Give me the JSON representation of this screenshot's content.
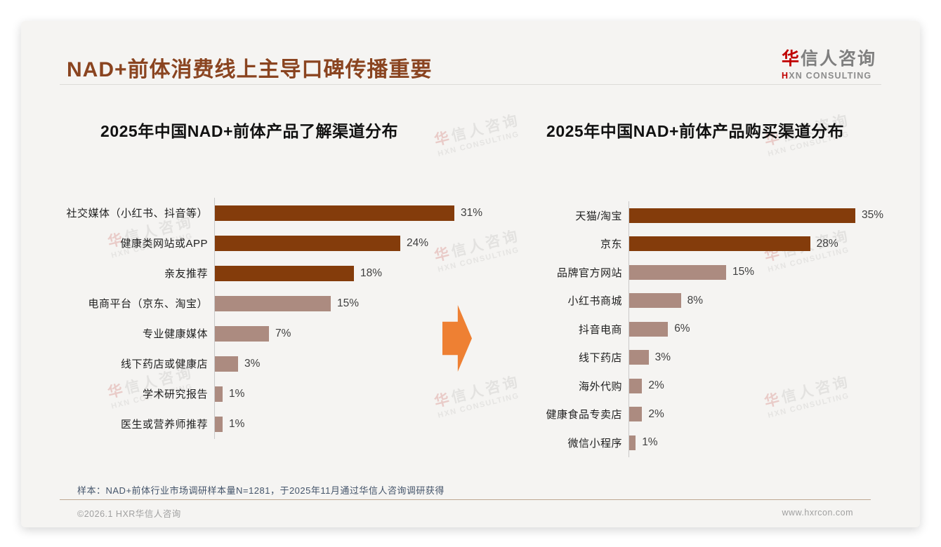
{
  "header": {
    "title": "NAD+前体消费线上主导口碑传播重要",
    "logo": {
      "brand_zh_accent": "华",
      "brand_zh_rest": "信人咨询",
      "brand_en_accent": "H",
      "brand_en_rest": "XN CONSULTING"
    }
  },
  "watermark": {
    "zh_accent": "华",
    "zh_rest": "信人咨询",
    "en": "HXN CONSULTING"
  },
  "colors": {
    "dark_bar": "#843C0B",
    "light_bar": "#AC8B80",
    "arrow": "#EE8033",
    "title_brown": "#8A4420",
    "note_blue": "#44546A"
  },
  "chart_data": [
    {
      "type": "bar",
      "orientation": "horizontal",
      "title": "2025年中国NAD+前体产品了解渠道分布",
      "unit": "%",
      "xlim": [
        0,
        35
      ],
      "grid": false,
      "categories": [
        "社交媒体（小红书、抖音等）",
        "健康类网站或APP",
        "亲友推荐",
        "电商平台（京东、淘宝）",
        "专业健康媒体",
        "线下药店或健康店",
        "学术研究报告",
        "医生或营养师推荐"
      ],
      "values": [
        31,
        24,
        18,
        15,
        7,
        3,
        1,
        1
      ],
      "value_labels": [
        "31%",
        "24%",
        "18%",
        "15%",
        "7%",
        "3%",
        "1%",
        "1%"
      ],
      "bar_colors": [
        "#843C0B",
        "#843C0B",
        "#843C0B",
        "#AC8B80",
        "#AC8B80",
        "#AC8B80",
        "#AC8B80",
        "#AC8B80"
      ]
    },
    {
      "type": "bar",
      "orientation": "horizontal",
      "title": "2025年中国NAD+前体产品购买渠道分布",
      "unit": "%",
      "xlim": [
        0,
        38
      ],
      "grid": false,
      "categories": [
        "天猫/淘宝",
        "京东",
        "品牌官方网站",
        "小红书商城",
        "抖音电商",
        "线下药店",
        "海外代购",
        "健康食品专卖店",
        "微信小程序"
      ],
      "values": [
        35,
        28,
        15,
        8,
        6,
        3,
        2,
        2,
        1
      ],
      "value_labels": [
        "35%",
        "28%",
        "15%",
        "8%",
        "6%",
        "3%",
        "2%",
        "2%",
        "1%"
      ],
      "bar_colors": [
        "#843C0B",
        "#843C0B",
        "#AC8B80",
        "#AC8B80",
        "#AC8B80",
        "#AC8B80",
        "#AC8B80",
        "#AC8B80",
        "#AC8B80"
      ]
    }
  ],
  "footnote": {
    "sample_note": "样本：NAD+前体行业市场调研样本量N=1281，于2025年11月通过华信人咨询调研获得"
  },
  "footer": {
    "copyright": "©2026.1 HXR华信人咨询",
    "url": "www.hxrcon.com"
  }
}
